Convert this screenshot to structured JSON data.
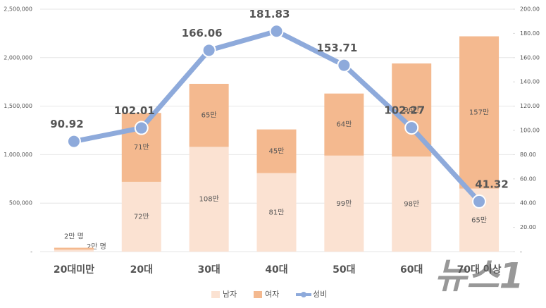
{
  "chart_data": {
    "type": "bar-line",
    "categories": [
      "20대미만",
      "20대",
      "30대",
      "40대",
      "50대",
      "60대",
      "70대 이상"
    ],
    "series": [
      {
        "name": "남자",
        "type": "bar",
        "color": "#fbe2d2",
        "values": [
          20000,
          720000,
          1080000,
          810000,
          990000,
          980000,
          650000
        ],
        "value_labels": [
          "2만 명",
          "72만",
          "108만",
          "81만",
          "99만",
          "98만",
          "65만"
        ]
      },
      {
        "name": "여자",
        "type": "bar",
        "color": "#f4b98f",
        "values": [
          20000,
          710000,
          650000,
          450000,
          640000,
          960000,
          1570000
        ],
        "value_labels": [
          "2만 명",
          "71만",
          "65만",
          "45만",
          "64만",
          "96만",
          "157만"
        ]
      },
      {
        "name": "성비",
        "type": "line",
        "axis": "y2",
        "color": "#8eaadb",
        "values": [
          90.92,
          102.01,
          166.06,
          181.83,
          153.71,
          102.27,
          41.32
        ]
      }
    ],
    "ylim": [
      0,
      2500000
    ],
    "yticks": [
      {
        "value": 0,
        "label": "-"
      },
      {
        "value": 500000,
        "label": "500,000"
      },
      {
        "value": 1000000,
        "label": "1,000,000"
      },
      {
        "value": 1500000,
        "label": "1,500,000"
      },
      {
        "value": 2000000,
        "label": "2,000,000"
      },
      {
        "value": 2500000,
        "label": "2,500,000"
      }
    ],
    "y2lim": [
      0,
      200
    ],
    "y2ticks": [
      {
        "value": 0,
        "label": "-"
      },
      {
        "value": 20,
        "label": "20.00"
      },
      {
        "value": 40,
        "label": "40.00"
      },
      {
        "value": 60,
        "label": "60.00"
      },
      {
        "value": 80,
        "label": "80.00"
      },
      {
        "value": 100,
        "label": "100.00"
      },
      {
        "value": 120,
        "label": "120.00"
      },
      {
        "value": 140,
        "label": "140.00"
      },
      {
        "value": 160,
        "label": "160.00"
      },
      {
        "value": 180,
        "label": "180.00"
      },
      {
        "value": 200,
        "label": "200.00"
      }
    ],
    "grid": true,
    "legend": "bottom",
    "watermark": "뉴스1"
  }
}
